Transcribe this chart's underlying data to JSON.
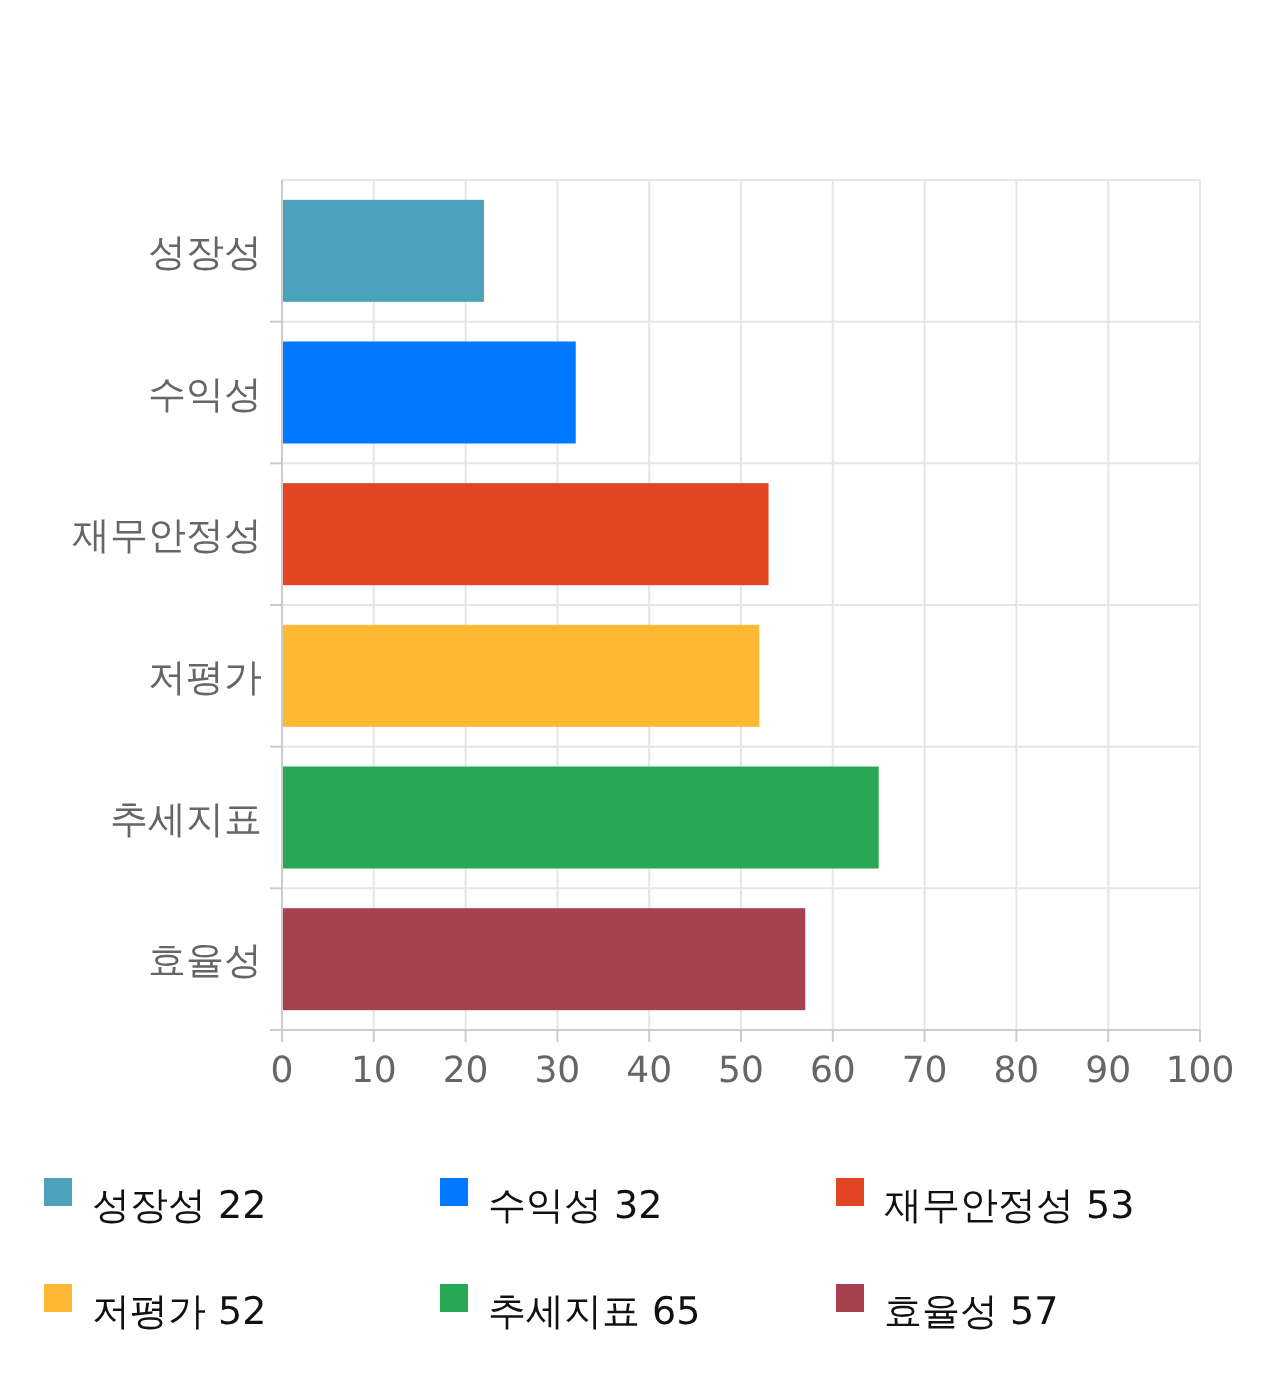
{
  "chart_data": {
    "type": "bar",
    "orientation": "horizontal",
    "categories": [
      "성장성",
      "수익성",
      "재무안정성",
      "저평가",
      "추세지표",
      "효율성"
    ],
    "values": [
      22,
      32,
      53,
      52,
      65,
      57
    ],
    "value_labels": [
      "22",
      "32",
      "53",
      "52",
      "65",
      "57"
    ],
    "colors": [
      "#4aa3ba",
      "#0078ff",
      "#e34522",
      "#feb833",
      "#28a855",
      "#a6424f"
    ],
    "xlim": [
      0,
      100
    ],
    "xticks": [
      0,
      10,
      20,
      30,
      40,
      50,
      60,
      70,
      80,
      90,
      100
    ],
    "grid": true
  }
}
